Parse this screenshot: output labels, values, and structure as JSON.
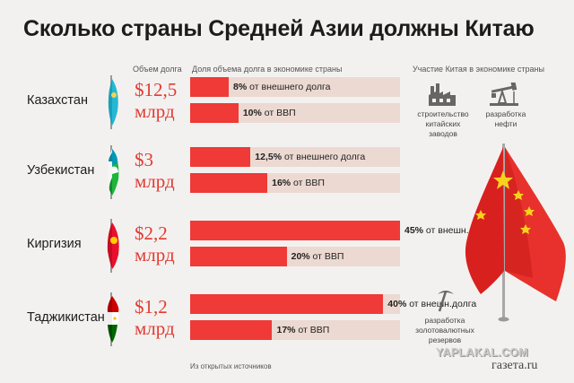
{
  "title": "Сколько страны Средней Азии должны Китаю",
  "headers": {
    "amount": "Объем долга",
    "share": "Доля объема долга в экономике страны",
    "china": "Участие Китая в экономике страны"
  },
  "chart_data": {
    "type": "bar",
    "orientation": "horizontal",
    "unit": "%",
    "xlim": [
      0,
      100
    ],
    "categories": [
      "Казахстан",
      "Узбекистан",
      "Киргизия",
      "Таджикистан"
    ],
    "debt": [
      {
        "value": "$12,5",
        "unit": "млрд"
      },
      {
        "value": "$3",
        "unit": "млрд"
      },
      {
        "value": "$2,2",
        "unit": "млрд"
      },
      {
        "value": "$1,2",
        "unit": "млрд"
      }
    ],
    "series": [
      {
        "values": [
          8,
          12.5,
          45,
          40
        ],
        "labels": [
          {
            "pct": "8%",
            "text": "от внешнего долга"
          },
          {
            "pct": "12,5%",
            "text": "от внешнего долга"
          },
          {
            "pct": "45%",
            "text": "от внешн.долга"
          },
          {
            "pct": "40%",
            "text": "от внешн.долга"
          }
        ]
      },
      {
        "values": [
          10,
          16,
          20,
          17
        ],
        "labels": [
          {
            "pct": "10%",
            "text": "от ВВП"
          },
          {
            "pct": "16%",
            "text": "от ВВП"
          },
          {
            "pct": "20%",
            "text": "от ВВП"
          },
          {
            "pct": "17%",
            "text": "от ВВП"
          }
        ]
      }
    ]
  },
  "china_participation": [
    {
      "icon": "factory-icon",
      "label": "строительство\nкитайских заводов"
    },
    {
      "icon": "oil-pump-icon",
      "label": "разработка\nнефти"
    },
    {
      "icon": "pickaxe-icon",
      "label": "разработка\nзолотовалютных\nрезервов"
    }
  ],
  "source": "Из открытых источников",
  "watermark": "YAPLAKAL.COM",
  "logo": "газета.ru",
  "colors": {
    "accent": "#ef3a37",
    "bar_bg": "#ecd9d1",
    "amount": "#e33a32",
    "background": "#f3f1ef"
  }
}
